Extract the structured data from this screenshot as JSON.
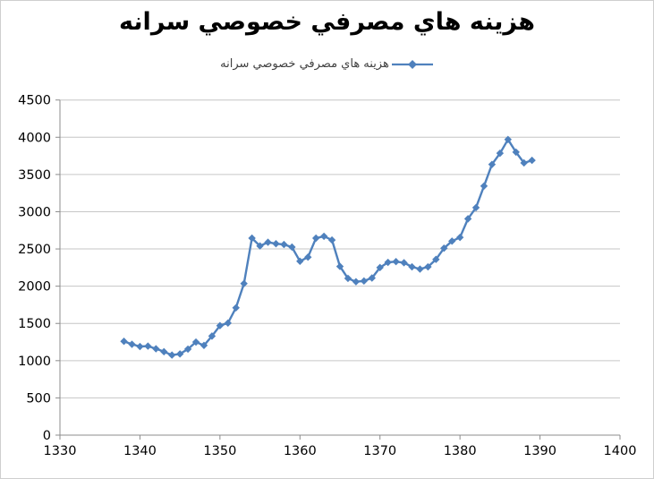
{
  "frame": {
    "background": "#ffffff",
    "border_color": "#cfcfcf"
  },
  "title": "هزينه هاي مصرفي  خصوصي سرانه",
  "legend": {
    "label": "هزينه هاي مصرفي  خصوصي سرانه",
    "marker": "diamond-on-line",
    "color": "#4f81bd"
  },
  "chart_data": {
    "type": "line",
    "title": "هزينه هاي مصرفي  خصوصي سرانه",
    "xlabel": "",
    "ylabel": "",
    "xlim": [
      1330,
      1400
    ],
    "ylim": [
      0,
      4500
    ],
    "x_ticks": [
      1330,
      1340,
      1350,
      1360,
      1370,
      1380,
      1390,
      1400
    ],
    "y_ticks": [
      0,
      500,
      1000,
      1500,
      2000,
      2500,
      3000,
      3500,
      4000,
      4500
    ],
    "grid": "horizontal",
    "legend_position": "top-center",
    "line_color": "#4f81bd",
    "marker": "diamond",
    "axis_color": "#8c8c8c",
    "gridline_color": "#c6c6c6",
    "tick_label_color": "#000000",
    "series": [
      {
        "name": "هزينه هاي مصرفي  خصوصي سرانه",
        "x": [
          1338,
          1339,
          1340,
          1341,
          1342,
          1343,
          1344,
          1345,
          1346,
          1347,
          1348,
          1349,
          1350,
          1351,
          1352,
          1353,
          1354,
          1355,
          1356,
          1357,
          1358,
          1359,
          1360,
          1361,
          1362,
          1363,
          1364,
          1365,
          1366,
          1367,
          1368,
          1369,
          1370,
          1371,
          1372,
          1373,
          1374,
          1375,
          1376,
          1377,
          1378,
          1379,
          1380,
          1381,
          1382,
          1383,
          1384,
          1385,
          1386,
          1387,
          1388,
          1389
        ],
        "values": [
          1260,
          1220,
          1190,
          1195,
          1160,
          1120,
          1075,
          1090,
          1155,
          1250,
          1205,
          1330,
          1470,
          1505,
          1710,
          2035,
          2645,
          2540,
          2590,
          2570,
          2560,
          2525,
          2335,
          2390,
          2645,
          2670,
          2620,
          2265,
          2105,
          2060,
          2070,
          2110,
          2250,
          2320,
          2330,
          2315,
          2260,
          2230,
          2260,
          2360,
          2510,
          2605,
          2655,
          2905,
          3055,
          3345,
          3635,
          3785,
          3970,
          3800,
          3655,
          3690
        ]
      }
    ]
  }
}
